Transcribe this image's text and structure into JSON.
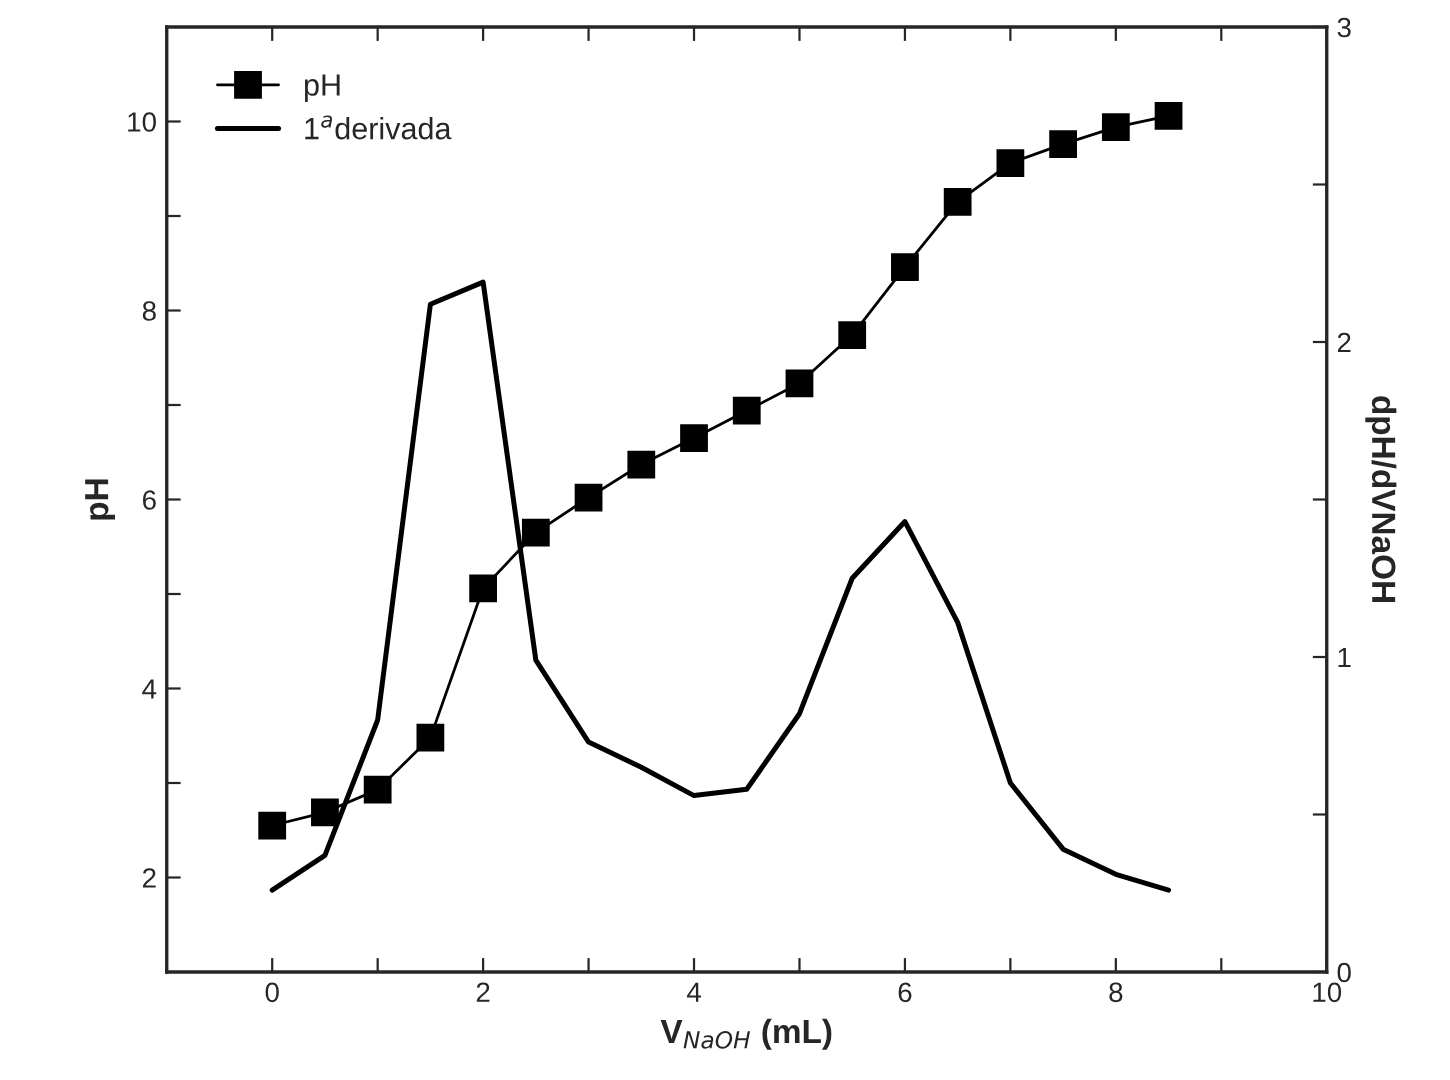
{
  "chart_data": {
    "type": "line",
    "xlabel": "V$_{NaOH}$ (mL)",
    "ylabel": "pH",
    "y2label": "dpH/dVNaOH",
    "x": [
      0,
      0.5,
      1,
      1.5,
      2,
      2.5,
      3,
      3.5,
      4,
      4.5,
      5,
      5.5,
      6,
      6.5,
      7,
      7.5,
      8,
      8.5
    ],
    "series": [
      {
        "name": "pH",
        "color": "#000000",
        "marker": "square",
        "line_style": "solid",
        "values": [
          2.55,
          2.69,
          2.93,
          3.48,
          5.06,
          5.65,
          6.02,
          6.37,
          6.65,
          6.94,
          7.23,
          7.74,
          8.46,
          9.15,
          9.56,
          9.76,
          9.94,
          10.06
        ]
      },
      {
        "name": "1$^{a}$derivada",
        "color": "#000000",
        "marker": "none",
        "line_style": "solid",
        "axis": "y2",
        "values": [
          0.26,
          0.37,
          0.8,
          2.12,
          2.19,
          0.99,
          0.73,
          0.65,
          0.56,
          0.58,
          0.82,
          1.25,
          1.43,
          1.11,
          0.6,
          0.39,
          0.31,
          0.26
        ]
      }
    ],
    "xlim": [
      -1,
      10
    ],
    "xticks": [
      0,
      {
        "value": 1,
        "label": null
      },
      2,
      {
        "value": 3,
        "label": null
      },
      4,
      {
        "value": 5,
        "label": null
      },
      6,
      {
        "value": 7,
        "label": null
      },
      8,
      {
        "value": 9,
        "label": null
      },
      10
    ],
    "ylim": [
      1,
      11
    ],
    "yticks": [
      2,
      {
        "value": 3,
        "label": null
      },
      4,
      {
        "value": 5,
        "label": null
      },
      6,
      {
        "value": 7,
        "label": null
      },
      8,
      {
        "value": 9,
        "label": null
      },
      10
    ],
    "y2lim": [
      0,
      3
    ],
    "y2ticks": [
      0,
      {
        "value": 0.5,
        "label": null
      },
      1,
      {
        "value": 1.5,
        "label": null
      },
      2,
      {
        "value": 2.5,
        "label": null
      },
      3
    ],
    "grid": false,
    "legend": "top left"
  }
}
